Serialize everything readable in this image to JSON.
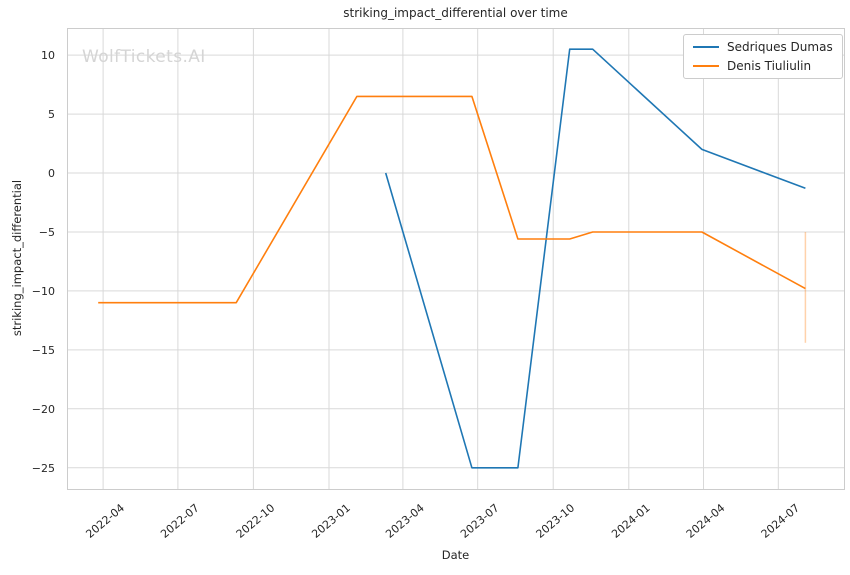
{
  "figure": {
    "title": "striking_impact_differential over time",
    "watermark": "WolfTickets.AI",
    "xlabel": "Date",
    "ylabel": "striking_impact_differential"
  },
  "chart_data": {
    "type": "line",
    "title": "striking_impact_differential over time",
    "xlabel": "Date",
    "ylabel": "striking_impact_differential",
    "grid": true,
    "grid_color": "#d9d9d9",
    "spine_color": "#cccccc",
    "legend_position": "upper right",
    "x_range": [
      "2022-02-16",
      "2024-09-19"
    ],
    "y_range": [
      -26.8,
      12.3
    ],
    "y_ticks": [
      10,
      5,
      0,
      -5,
      -10,
      -15,
      -20,
      -25
    ],
    "x_ticks": [
      {
        "label": "2022-04",
        "date": "2022-04-01"
      },
      {
        "label": "2022-07",
        "date": "2022-07-01"
      },
      {
        "label": "2022-10",
        "date": "2022-10-01"
      },
      {
        "label": "2023-01",
        "date": "2023-01-01"
      },
      {
        "label": "2023-04",
        "date": "2023-04-01"
      },
      {
        "label": "2023-07",
        "date": "2023-07-01"
      },
      {
        "label": "2023-10",
        "date": "2023-10-01"
      },
      {
        "label": "2024-01",
        "date": "2024-01-01"
      },
      {
        "label": "2024-04",
        "date": "2024-04-01"
      },
      {
        "label": "2024-07",
        "date": "2024-07-01"
      }
    ],
    "series": [
      {
        "name": "Sedriques Dumas",
        "color": "#1f77b4",
        "points": [
          [
            "2023-03-11",
            0
          ],
          [
            "2023-06-24",
            -25
          ],
          [
            "2023-08-19",
            -25
          ],
          [
            "2023-10-21",
            10.5
          ],
          [
            "2023-11-18",
            10.5
          ],
          [
            "2024-03-30",
            2.0
          ],
          [
            "2024-08-03",
            -1.3
          ]
        ]
      },
      {
        "name": "Denis Tiuliulin",
        "color": "#ff7f0e",
        "points": [
          [
            "2022-03-26",
            -11
          ],
          [
            "2022-09-10",
            -11
          ],
          [
            "2023-02-04",
            6.5
          ],
          [
            "2023-06-24",
            6.5
          ],
          [
            "2023-08-19",
            -5.6
          ],
          [
            "2023-10-21",
            -5.6
          ],
          [
            "2023-11-18",
            -5.0
          ],
          [
            "2024-03-30",
            -5.0
          ],
          [
            "2024-08-03",
            -9.8
          ]
        ]
      }
    ],
    "error_bar": {
      "series": "Denis Tiuliulin",
      "date": "2024-08-03",
      "from": -5.0,
      "to": -14.4,
      "color": "#ff7f0e",
      "opacity": 0.35
    }
  }
}
